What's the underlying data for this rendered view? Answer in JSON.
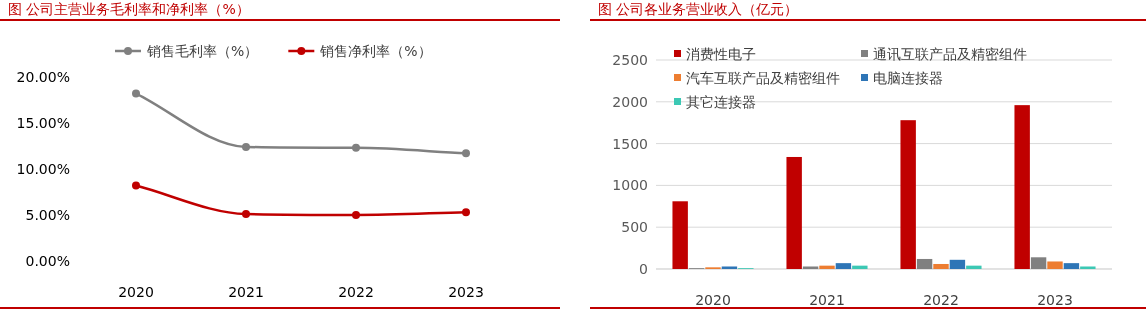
{
  "chart_data": [
    {
      "type": "line",
      "title": "图 公司主营业务毛利率和净利率（%）",
      "categories": [
        "2020",
        "2021",
        "2022",
        "2023"
      ],
      "series": [
        {
          "name": "销售毛利率（%）",
          "color": "#808080",
          "values": [
            18.2,
            12.4,
            12.3,
            11.7
          ]
        },
        {
          "name": "销售净利率（%）",
          "color": "#c00000",
          "values": [
            8.2,
            5.1,
            5.0,
            5.3
          ]
        }
      ],
      "ylim": [
        0,
        20
      ],
      "yticks": [
        {
          "value": 0,
          "label": "0.00%"
        },
        {
          "value": 5,
          "label": "5.00%"
        },
        {
          "value": 10,
          "label": "10.00%"
        },
        {
          "value": 15,
          "label": "15.00%"
        },
        {
          "value": 20,
          "label": "20.00%"
        }
      ],
      "grid": false,
      "legend": "top",
      "marker": "circle",
      "line_style": "solid"
    },
    {
      "type": "bar",
      "title": "图 公司各业务营业收入（亿元）",
      "categories": [
        "2020",
        "2021",
        "2022",
        "2023"
      ],
      "series": [
        {
          "name": "消费性电子",
          "color": "#c00000",
          "values": [
            810,
            1340,
            1780,
            1960
          ]
        },
        {
          "name": "通讯互联产品及精密组件",
          "color": "#808080",
          "values": [
            10,
            30,
            120,
            140
          ]
        },
        {
          "name": "汽车互联产品及精密组件",
          "color": "#ed7d31",
          "values": [
            20,
            40,
            60,
            90
          ]
        },
        {
          "name": "电脑连接器",
          "color": "#2e75b6",
          "values": [
            30,
            70,
            110,
            70
          ]
        },
        {
          "name": "其它连接器",
          "color": "#3cc8b4",
          "values": [
            10,
            40,
            40,
            30
          ]
        }
      ],
      "ylim": [
        0,
        2500
      ],
      "yticks": [
        0,
        500,
        1000,
        1500,
        2000,
        2500
      ],
      "grid": "y",
      "legend": "top left"
    }
  ]
}
